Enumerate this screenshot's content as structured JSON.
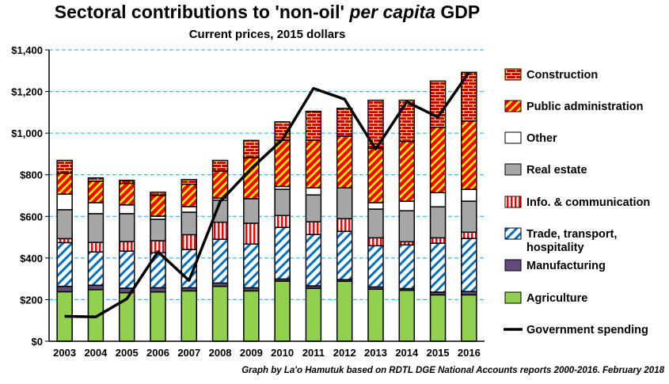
{
  "chart_data": {
    "type": "bar",
    "stacked": true,
    "title": "Sectoral contributions to 'non-oil' per capita GDP",
    "title_parts": [
      "Sectoral contributions to 'non-oil' ",
      "per capita",
      " GDP"
    ],
    "subtitle": "Current prices, 2015 dollars",
    "footer": "Graph by La'o Hamutuk based on RDTL DGE National Accounts reports 2000-2016.  February 2018",
    "xlabel": "",
    "ylabel": "",
    "ylim": [
      0,
      1400
    ],
    "yticks": [
      0,
      200,
      400,
      600,
      800,
      1000,
      1200,
      1400
    ],
    "ytick_labels": [
      "$0",
      "$200",
      "$400",
      "$600",
      "$800",
      "$1,000",
      "$1,200",
      "$1,400"
    ],
    "grid": "horizontal dashed",
    "legend_placement": "right",
    "categories": [
      "2003",
      "2004",
      "2005",
      "2006",
      "2007",
      "2008",
      "2009",
      "2010",
      "2011",
      "2012",
      "2013",
      "2014",
      "2015",
      "2016"
    ],
    "series": [
      {
        "name": "Agriculture",
        "color": "#92d050",
        "pattern": "solid",
        "values": [
          238,
          248,
          233,
          237,
          242,
          264,
          242,
          289,
          254,
          288,
          250,
          245,
          223,
          223
        ]
      },
      {
        "name": "Manufacturing",
        "color": "#604a7b",
        "pattern": "solid",
        "values": [
          26,
          21,
          22,
          20,
          15,
          16,
          15,
          10,
          12,
          8,
          11,
          8,
          13,
          16
        ]
      },
      {
        "name": "Trade, transport, hospitality",
        "color": "#0070c0",
        "pattern": "diagonal",
        "values": [
          210,
          160,
          178,
          168,
          184,
          210,
          210,
          248,
          247,
          232,
          198,
          210,
          235,
          255
        ]
      },
      {
        "name": "Info. & communication",
        "color": "#ff0000",
        "pattern": "vertical",
        "values": [
          19,
          46,
          46,
          58,
          71,
          82,
          100,
          57,
          61,
          61,
          38,
          15,
          26,
          30
        ]
      },
      {
        "name": "Real estate",
        "color": "#a6a6a6",
        "pattern": "solid",
        "values": [
          139,
          138,
          134,
          103,
          108,
          106,
          118,
          126,
          129,
          148,
          138,
          149,
          149,
          149
        ]
      },
      {
        "name": "Other",
        "color": "#ffffff",
        "pattern": "solid",
        "values": [
          75,
          53,
          42,
          15,
          27,
          10,
          0,
          14,
          34,
          0,
          31,
          46,
          68,
          57
        ]
      },
      {
        "name": "Public administration",
        "color": "#ff0000",
        "pattern": "diagonal-yellow",
        "values": [
          101,
          103,
          103,
          100,
          108,
          130,
          197,
          222,
          229,
          248,
          261,
          287,
          314,
          328
        ]
      },
      {
        "name": "Construction",
        "color": "#c00000",
        "pattern": "brick",
        "values": [
          61,
          16,
          15,
          15,
          22,
          51,
          83,
          88,
          139,
          134,
          231,
          198,
          222,
          234
        ]
      }
    ],
    "line_series": {
      "name": "Government spending",
      "color": "#000000",
      "values": [
        120,
        117,
        204,
        430,
        292,
        671,
        830,
        968,
        1215,
        1163,
        923,
        1150,
        1077,
        1292
      ]
    },
    "legend": [
      "Construction",
      "Public administration",
      "Other",
      "Real estate",
      "Info. & communication",
      "Trade, transport, hospitality",
      "Manufacturing",
      "Agriculture",
      "Government spending"
    ]
  }
}
